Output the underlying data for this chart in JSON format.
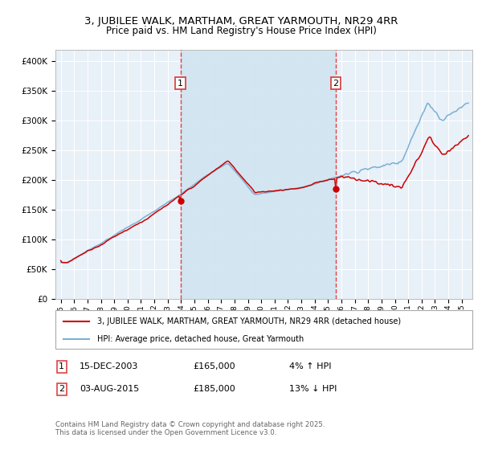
{
  "title1": "3, JUBILEE WALK, MARTHAM, GREAT YARMOUTH, NR29 4RR",
  "title2": "Price paid vs. HM Land Registry's House Price Index (HPI)",
  "legend_label_red": "3, JUBILEE WALK, MARTHAM, GREAT YARMOUTH, NR29 4RR (detached house)",
  "legend_label_blue": "HPI: Average price, detached house, Great Yarmouth",
  "annotation1_date": "15-DEC-2003",
  "annotation1_price": "£165,000",
  "annotation1_hpi": "4% ↑ HPI",
  "annotation2_date": "03-AUG-2015",
  "annotation2_price": "£185,000",
  "annotation2_hpi": "13% ↓ HPI",
  "footer": "Contains HM Land Registry data © Crown copyright and database right 2025.\nThis data is licensed under the Open Government Licence v3.0.",
  "red_color": "#cc0000",
  "blue_color": "#7bafd4",
  "vline_color": "#dd4444",
  "shade_color": "#d0e4f0",
  "bg_color": "#e8f0f8",
  "grid_color": "#ffffff",
  "ylim": [
    0,
    420000
  ],
  "yticks": [
    0,
    50000,
    100000,
    150000,
    200000,
    250000,
    300000,
    350000,
    400000
  ],
  "sale1_year": 2003.96,
  "sale1_price": 165000,
  "sale2_year": 2015.58,
  "sale2_price": 185000
}
